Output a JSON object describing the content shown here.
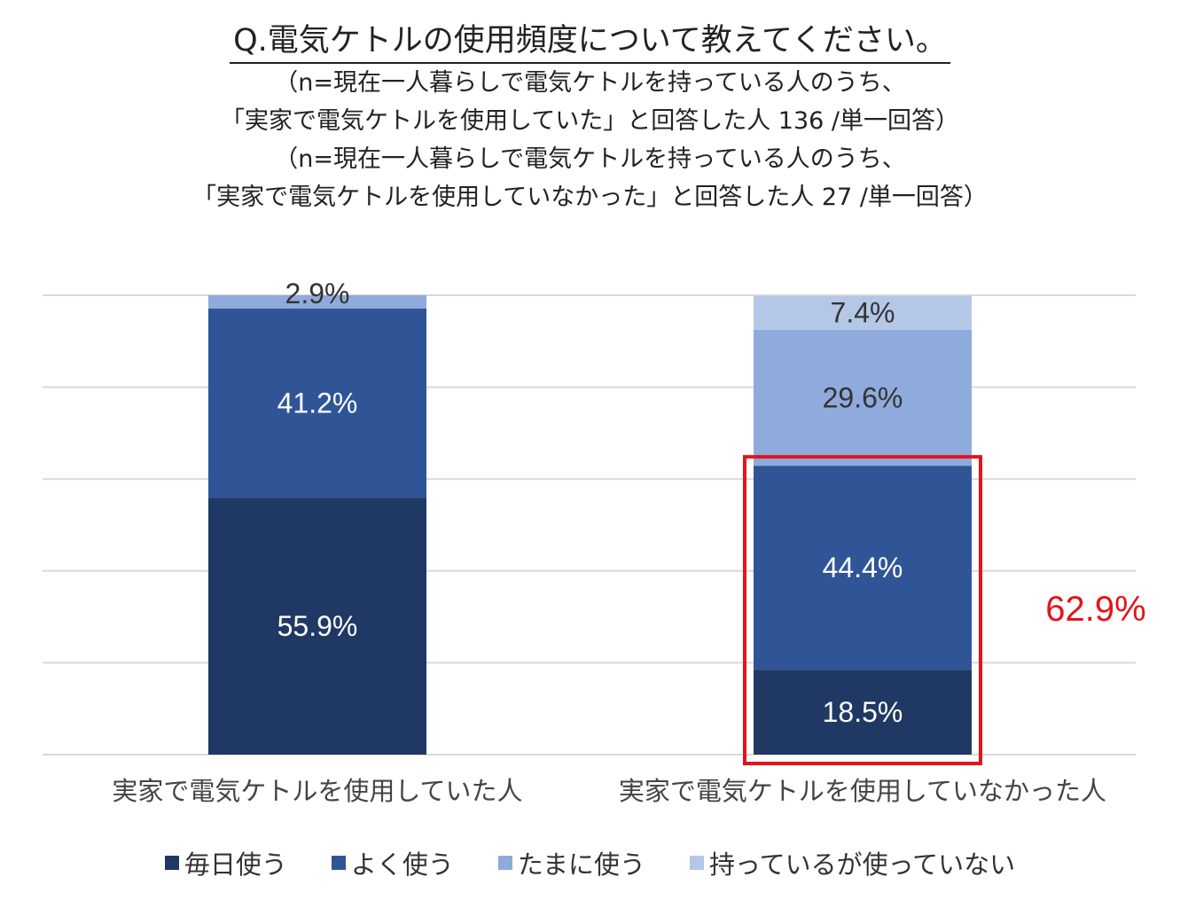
{
  "header": {
    "title": "Q.電気ケトルの使用頻度について教えてください。",
    "subtitle_lines": [
      "（n=現在一人暮らしで電気ケトルを持っている人のうち、",
      "「実家で電気ケトルを使用していた」と回答した人 136 /単一回答）",
      "（n=現在一人暮らしで電気ケトルを持っている人のうち、",
      "「実家で電気ケトルを使用していなかった」と回答した人 27 /単一回答）"
    ]
  },
  "colors": {
    "daily": "#203864",
    "often": "#2f5597",
    "sometimes": "#8faadc",
    "not_used": "#b4c7e7",
    "highlight": "#e3141b",
    "grid": "#d9d9d9"
  },
  "chart_data": {
    "type": "bar",
    "stacked": true,
    "percent": true,
    "categories": [
      "実家で電気ケトルを使用していた人",
      "実家で電気ケトルを使用していなかった人"
    ],
    "series": [
      {
        "name": "毎日使う",
        "values": [
          55.9,
          18.5
        ],
        "labels": [
          "55.9%",
          "18.5%"
        ]
      },
      {
        "name": "よく使う",
        "values": [
          41.2,
          44.4
        ],
        "labels": [
          "41.2%",
          "44.4%"
        ]
      },
      {
        "name": "たまに使う",
        "values": [
          2.9,
          29.6
        ],
        "labels": [
          "2.9%",
          "29.6%"
        ]
      },
      {
        "name": "持っているが使っていない",
        "values": [
          0,
          7.4
        ],
        "labels": [
          "",
          "7.4%"
        ]
      }
    ],
    "ylim": [
      0,
      100
    ],
    "grid": true,
    "legend_position": "bottom",
    "annotation": {
      "text": "62.9%",
      "category_index": 1,
      "series_indices": [
        0,
        1
      ]
    }
  }
}
